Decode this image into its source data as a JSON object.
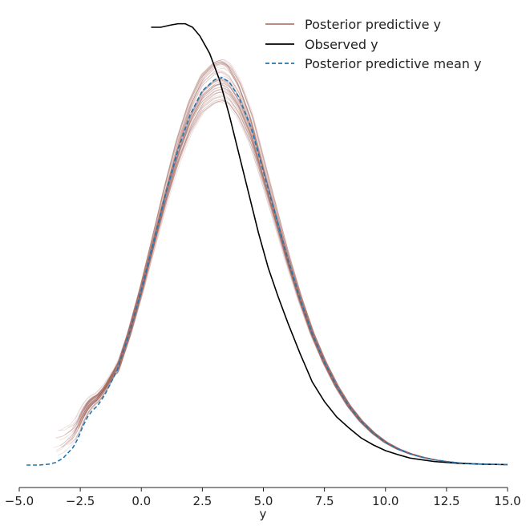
{
  "chart_data": {
    "type": "line",
    "title": "",
    "xlabel": "y",
    "ylabel": "",
    "xlim": [
      -5.0,
      15.0
    ],
    "ylim": [
      0,
      1.0
    ],
    "x_ticks": [
      -5.0,
      -2.5,
      0.0,
      2.5,
      5.0,
      7.5,
      10.0,
      12.5,
      15.0
    ],
    "x_tick_labels": [
      "−5.0",
      "−2.5",
      "0.0",
      "2.5",
      "5.0",
      "7.5",
      "10.0",
      "12.5",
      "15.0"
    ],
    "y_axis_visible": false,
    "grid": false,
    "legend_position": "top-right",
    "colors": {
      "posterior_predictive": "#a0655a",
      "observed": "#000000",
      "posterior_predictive_mean": "#1f77b4"
    },
    "legend": [
      {
        "label": "Posterior predictive y",
        "key": "posterior_predictive"
      },
      {
        "label": "Observed y",
        "key": "observed"
      },
      {
        "label": "Posterior predictive mean y",
        "key": "posterior_predictive_mean"
      }
    ],
    "series": [
      {
        "name": "Observed y",
        "style": "solid",
        "x": [
          0.4,
          0.8,
          1.2,
          1.5,
          1.8,
          2.1,
          2.4,
          2.8,
          3.2,
          3.6,
          4.0,
          4.4,
          4.8,
          5.2,
          5.6,
          6.0,
          6.5,
          7.0,
          7.5,
          8.0,
          8.5,
          9.0,
          9.5,
          10.0,
          10.5,
          11.0,
          11.5,
          12.0,
          12.5,
          13.0,
          14.0,
          15.0
        ],
        "y": [
          1.0,
          1.0,
          1.005,
          1.008,
          1.008,
          1.0,
          0.98,
          0.94,
          0.88,
          0.8,
          0.71,
          0.62,
          0.53,
          0.45,
          0.385,
          0.325,
          0.255,
          0.19,
          0.145,
          0.11,
          0.085,
          0.062,
          0.046,
          0.033,
          0.024,
          0.016,
          0.012,
          0.008,
          0.006,
          0.004,
          0.002,
          0.001
        ]
      },
      {
        "name": "Posterior predictive mean y",
        "style": "dashed",
        "x": [
          -4.7,
          -4.2,
          -3.8,
          -3.5,
          -3.2,
          -3.0,
          -2.8,
          -2.6,
          -2.4,
          -2.2,
          -2.0,
          -1.8,
          -1.5,
          -1.0,
          -0.5,
          0.0,
          0.5,
          1.0,
          1.5,
          2.0,
          2.5,
          3.0,
          3.3,
          3.6,
          4.0,
          4.5,
          5.0,
          5.5,
          6.0,
          6.5,
          7.0,
          7.5,
          8.0,
          8.5,
          9.0,
          9.5,
          10.0,
          10.5,
          11.0,
          11.5,
          12.0,
          12.5,
          13.0,
          14.0,
          15.0
        ],
        "y": [
          0.0,
          0.0,
          0.002,
          0.006,
          0.016,
          0.028,
          0.04,
          0.06,
          0.088,
          0.11,
          0.125,
          0.135,
          0.16,
          0.215,
          0.3,
          0.4,
          0.51,
          0.62,
          0.72,
          0.8,
          0.855,
          0.88,
          0.885,
          0.875,
          0.84,
          0.77,
          0.67,
          0.57,
          0.47,
          0.38,
          0.3,
          0.235,
          0.18,
          0.135,
          0.1,
          0.073,
          0.052,
          0.037,
          0.026,
          0.018,
          0.012,
          0.008,
          0.005,
          0.002,
          0.001
        ]
      }
    ],
    "posterior_predictive_draws": {
      "name": "Posterior predictive y",
      "count": 60,
      "x_start_range": [
        -3.6,
        -2.2
      ],
      "peak_range": [
        0.83,
        0.93
      ],
      "opacity": 0.25
    }
  },
  "legend_labels": {
    "posterior_predictive": "Posterior predictive y",
    "observed": "Observed y",
    "posterior_predictive_mean": "Posterior predictive mean y"
  }
}
